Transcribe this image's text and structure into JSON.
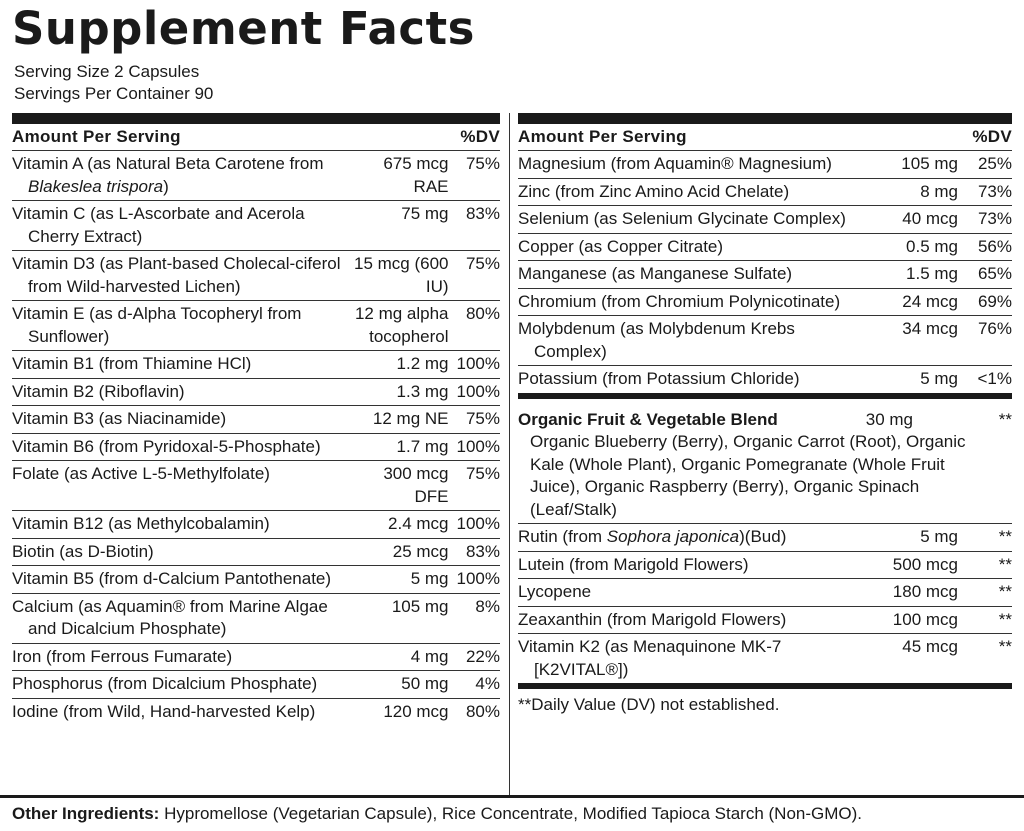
{
  "title": "Supplement Facts",
  "serving_size": "Serving Size 2 Capsules",
  "servings_per_container": "Servings Per Container 90",
  "left": {
    "header": {
      "amount": "Amount Per Serving",
      "dv": "%DV"
    },
    "rows": [
      {
        "name": [
          "Vitamin A (as Natural Beta Carotene from ",
          {
            "italic": "Blakeslea trispora"
          },
          ")"
        ],
        "amount": "675 mcg RAE",
        "dv": "75%"
      },
      {
        "name": "Vitamin C (as L-Ascorbate and Acerola Cherry Extract)",
        "amount": "75 mg",
        "dv": "83%"
      },
      {
        "name": "Vitamin D3 (as Plant-based Cholecal-ciferol from Wild-harvested Lichen)",
        "amount": "15 mcg (600 IU)",
        "dv": "75%"
      },
      {
        "name": "Vitamin E (as d-Alpha Tocopheryl from Sunflower)",
        "amount": "12 mg alpha tocopherol",
        "dv": "80%"
      },
      {
        "name": "Vitamin B1 (from Thiamine HCl)",
        "amount": "1.2 mg",
        "dv": "100%"
      },
      {
        "name": "Vitamin B2 (Riboflavin)",
        "amount": "1.3 mg",
        "dv": "100%"
      },
      {
        "name": "Vitamin B3 (as Niacinamide)",
        "amount": "12 mg NE",
        "dv": "75%"
      },
      {
        "name": "Vitamin B6 (from Pyridoxal-5-Phosphate)",
        "amount": "1.7 mg",
        "dv": "100%"
      },
      {
        "name": "Folate (as Active L-5-Methylfolate)",
        "amount": "300 mcg DFE",
        "dv": "75%"
      },
      {
        "name": "Vitamin B12 (as Methylcobalamin)",
        "amount": "2.4 mcg",
        "dv": "100%"
      },
      {
        "name": "Biotin (as D-Biotin)",
        "amount": "25 mcg",
        "dv": "83%"
      },
      {
        "name": "Vitamin B5 (from d-Calcium Pantothenate)",
        "amount": "5 mg",
        "dv": "100%"
      },
      {
        "name": "Calcium (as Aquamin® from Marine Algae and Dicalcium Phosphate)",
        "amount": "105 mg",
        "dv": "8%"
      },
      {
        "name": "Iron (from Ferrous Fumarate)",
        "amount": "4 mg",
        "dv": "22%"
      },
      {
        "name": "Phosphorus (from Dicalcium Phosphate)",
        "amount": "50 mg",
        "dv": "4%"
      },
      {
        "name": "Iodine (from Wild, Hand-harvested Kelp)",
        "amount": "120 mcg",
        "dv": "80%"
      }
    ]
  },
  "right": {
    "header": {
      "amount": "Amount Per Serving",
      "dv": "%DV"
    },
    "rows": [
      {
        "name": "Magnesium (from Aquamin® Magnesium)",
        "amount": "105 mg",
        "dv": "25%"
      },
      {
        "name": "Zinc (from Zinc Amino Acid Chelate)",
        "amount": "8 mg",
        "dv": "73%"
      },
      {
        "name": "Selenium (as Selenium Glycinate Complex)",
        "amount": "40 mcg",
        "dv": "73%"
      },
      {
        "name": "Copper (as Copper Citrate)",
        "amount": "0.5 mg",
        "dv": "56%"
      },
      {
        "name": "Manganese (as Manganese Sulfate)",
        "amount": "1.5 mg",
        "dv": "65%"
      },
      {
        "name": "Chromium (from Chromium Polynicotinate)",
        "amount": "24 mcg",
        "dv": "69%"
      },
      {
        "name": "Molybdenum (as Molybdenum Krebs Complex)",
        "amount": "34 mcg",
        "dv": "76%"
      },
      {
        "name": "Potassium (from Potassium Chloride)",
        "amount": "5 mg",
        "dv": "<1%"
      }
    ],
    "blend": {
      "name": "Organic Fruit & Vegetable Blend",
      "amount": "30 mg",
      "dv": "**",
      "description": "Organic Blueberry (Berry), Organic Carrot (Root), Organic Kale (Whole Plant), Organic Pomegranate (Whole Fruit Juice), Organic Raspberry (Berry), Organic Spinach (Leaf/Stalk)"
    },
    "rows2": [
      {
        "name": [
          "Rutin (from ",
          {
            "italic": "Sophora japonica"
          },
          ")(Bud)"
        ],
        "amount": "5 mg",
        "dv": "**"
      },
      {
        "name": "Lutein (from Marigold Flowers)",
        "amount": "500 mcg",
        "dv": "**"
      },
      {
        "name": "Lycopene",
        "amount": "180 mcg",
        "dv": "**"
      },
      {
        "name": "Zeaxanthin (from Marigold Flowers)",
        "amount": "100 mcg",
        "dv": "**"
      },
      {
        "name": "Vitamin K2 (as Menaquinone MK-7 [K2VITAL®])",
        "amount": "45 mcg",
        "dv": "**"
      }
    ],
    "footnote": "**Daily Value (DV) not established."
  },
  "other_ingredients": {
    "label": "Other Ingredients:",
    "text": " Hypromellose (Vegetarian Capsule), Rice Concentrate, Modified Tapioca Starch (Non-GMO)."
  }
}
